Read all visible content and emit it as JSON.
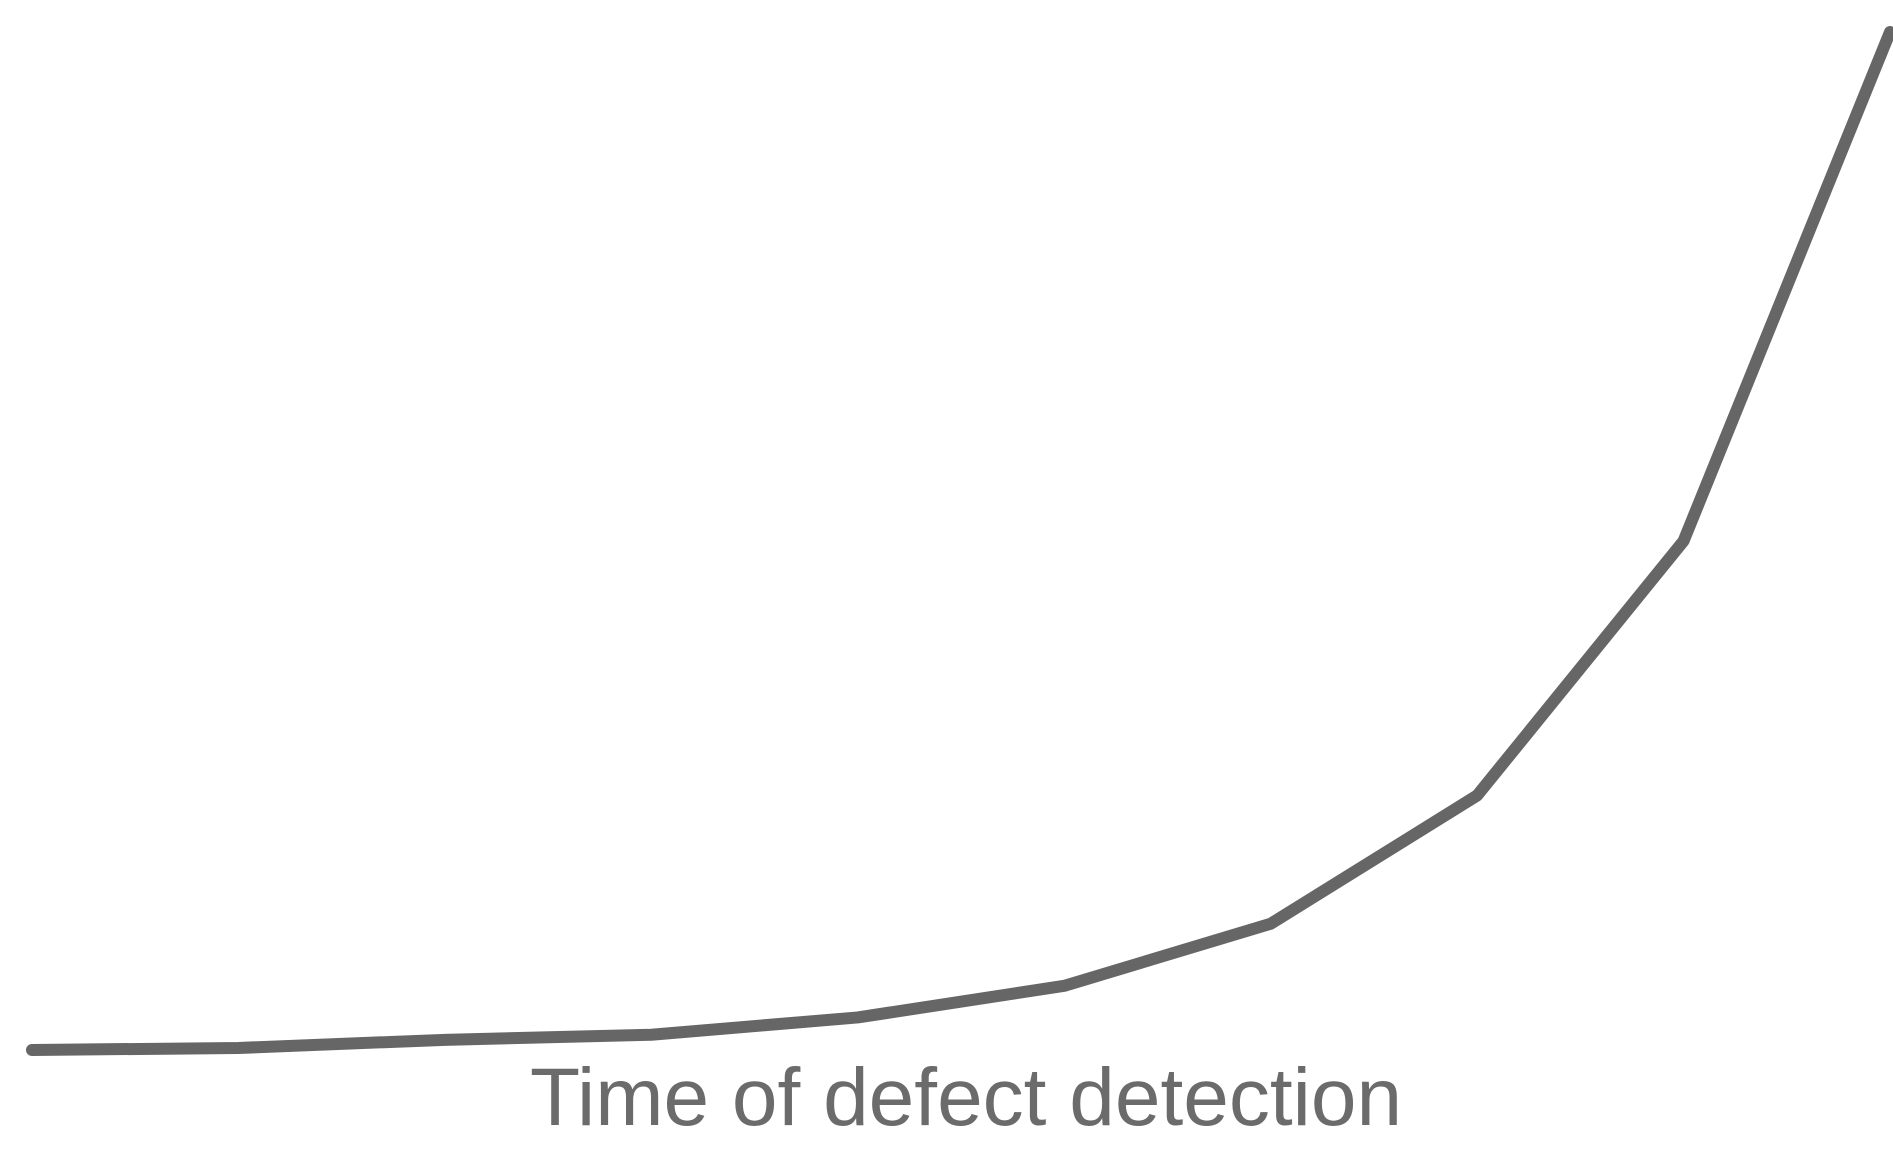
{
  "chart_data": {
    "type": "line",
    "x_label": "Time of defect detection",
    "x": [
      0,
      1,
      2,
      3,
      4,
      5,
      6,
      7,
      8,
      9
    ],
    "series": [
      {
        "color": "#666666",
        "values": [
          0,
          0.2,
          1,
          1.5,
          3.2,
          6.3,
          12.4,
          25,
          50,
          100
        ]
      }
    ],
    "xlim": [
      0,
      9
    ],
    "ylim": [
      0,
      100
    ]
  }
}
